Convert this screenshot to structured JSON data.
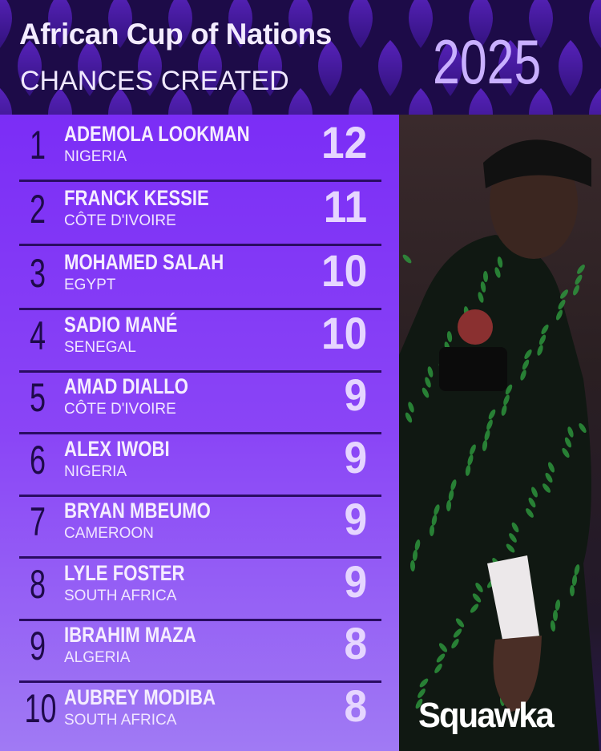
{
  "header": {
    "title": "African Cup of Nations",
    "subtitle": "CHANCES CREATED",
    "year": "2025"
  },
  "rankings": [
    {
      "rank": "1",
      "name": "ADEMOLA LOOKMAN",
      "country": "NIGERIA",
      "value": "12"
    },
    {
      "rank": "2",
      "name": "FRANCK KESSIE",
      "country": "CÔTE D'IVOIRE",
      "value": "11"
    },
    {
      "rank": "3",
      "name": "MOHAMED SALAH",
      "country": "EGYPT",
      "value": "10"
    },
    {
      "rank": "4",
      "name": "SADIO MANÉ",
      "country": "SENEGAL",
      "value": "10"
    },
    {
      "rank": "5",
      "name": "AMAD DIALLO",
      "country": "CÔTE D'IVOIRE",
      "value": "9"
    },
    {
      "rank": "6",
      "name": "ALEX IWOBI",
      "country": "NIGERIA",
      "value": "9"
    },
    {
      "rank": "7",
      "name": "BRYAN MBEUMO",
      "country": "CAMEROON",
      "value": "9"
    },
    {
      "rank": "8",
      "name": "LYLE FOSTER",
      "country": "SOUTH AFRICA",
      "value": "9"
    },
    {
      "rank": "9",
      "name": "IBRAHIM MAZA",
      "country": "ALGERIA",
      "value": "8"
    },
    {
      "rank": "10",
      "name": "AUBREY MODIBA",
      "country": "SOUTH AFRICA",
      "value": "8"
    }
  ],
  "brand": {
    "logo": "Squawka"
  },
  "colors": {
    "header_bg": "#1d0b48",
    "panel_top": "#7b2df6",
    "panel_bottom": "#a07af4",
    "rank": "#1e0a4a",
    "value": "#e6d6ff"
  }
}
